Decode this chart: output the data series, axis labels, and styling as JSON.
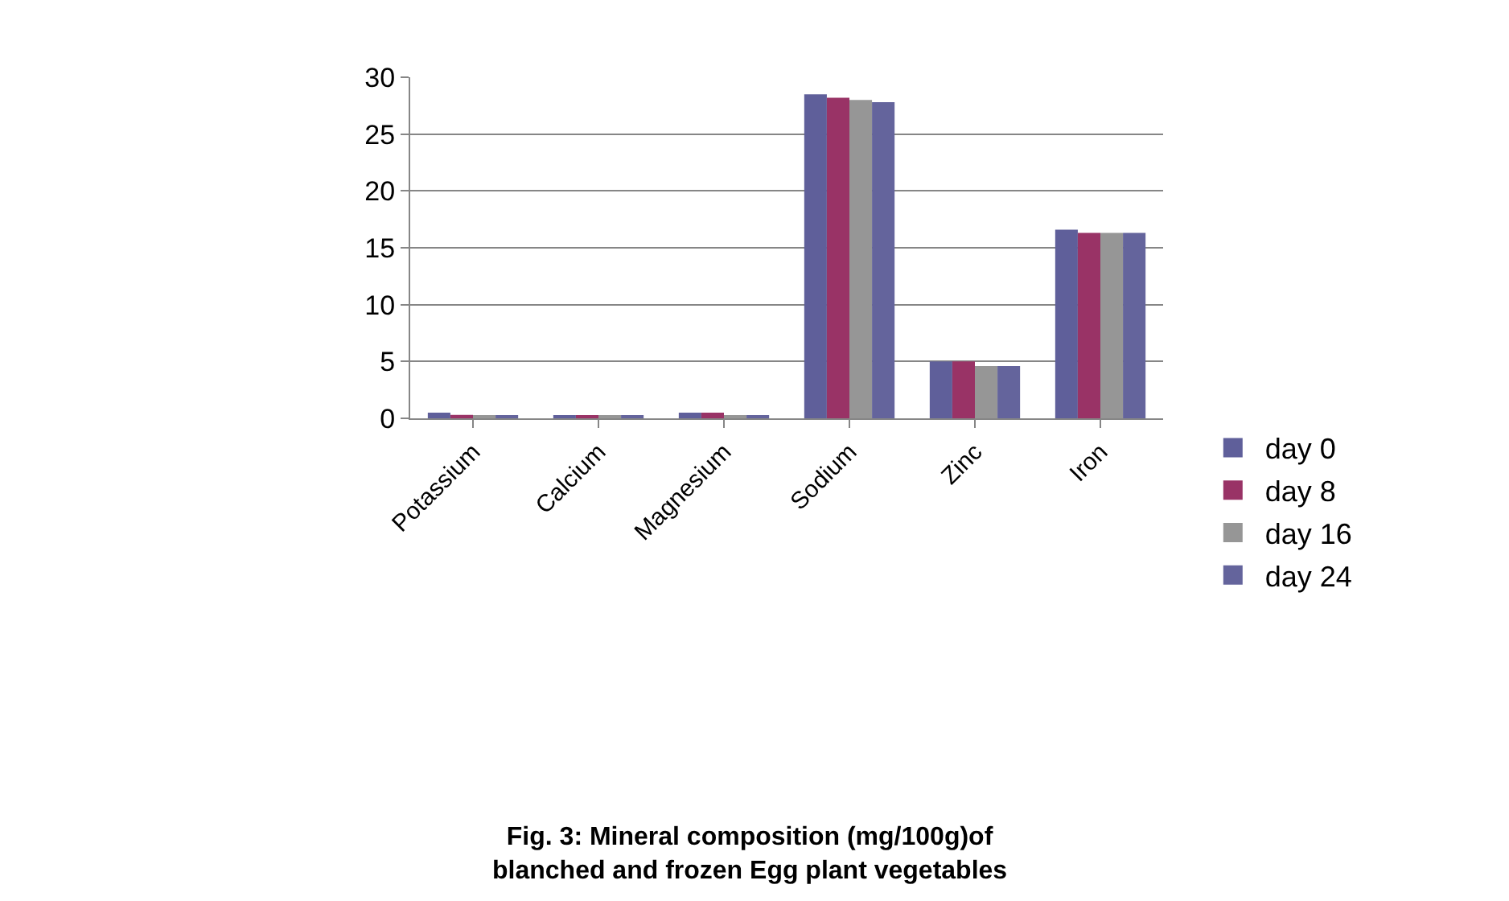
{
  "chart_data": {
    "type": "bar",
    "title": "Fig. 3: Mineral composition (mg/100g)of\nblanched and frozen Egg plant vegetables",
    "categories": [
      "Potassium",
      "Calcium",
      "Magnesium",
      "Sodium",
      "Zinc",
      "Iron"
    ],
    "series": [
      {
        "name": "day 0",
        "color": "#5f5f9a",
        "values": [
          0.5,
          0.2,
          0.5,
          28.5,
          5.0,
          16.6
        ]
      },
      {
        "name": "day 8",
        "color": "#993366",
        "values": [
          0.3,
          0.2,
          0.5,
          28.2,
          5.0,
          16.3
        ]
      },
      {
        "name": "day 16",
        "color": "#969696",
        "values": [
          0.2,
          0.2,
          0.2,
          28.0,
          4.6,
          16.3
        ]
      },
      {
        "name": "day 24",
        "color": "#64649c",
        "values": [
          0.2,
          0.2,
          0.2,
          27.8,
          4.6,
          16.3
        ]
      }
    ],
    "ylim": [
      0,
      30
    ],
    "yticks": [
      0,
      5,
      10,
      15,
      20,
      25,
      30
    ],
    "grid": "y",
    "legend": "right"
  }
}
